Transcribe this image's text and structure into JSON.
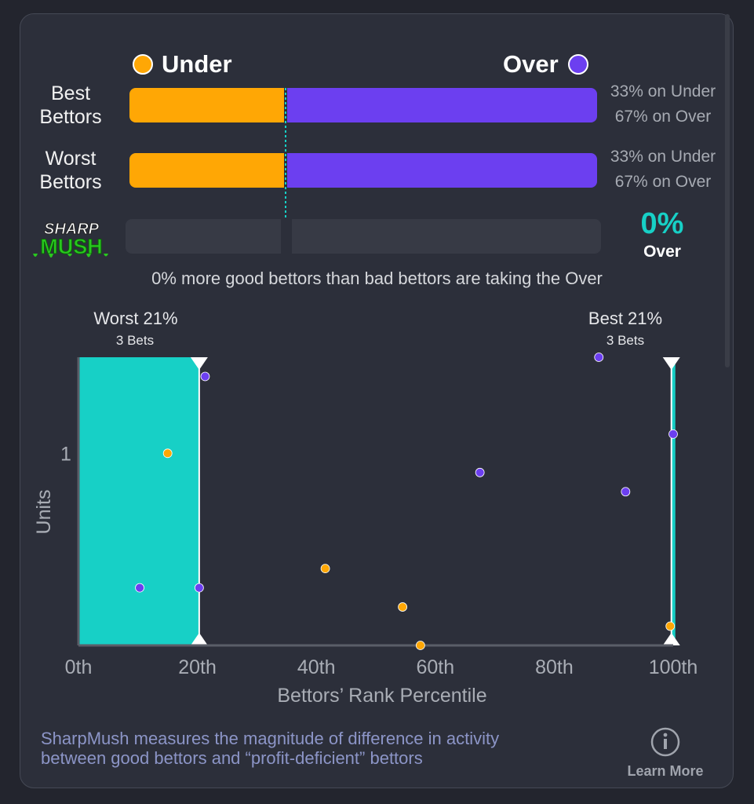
{
  "legend": {
    "under": "Under",
    "over": "Over"
  },
  "colors": {
    "under": "#ffa705",
    "over": "#6c3ff0",
    "accent": "#17d0c6"
  },
  "rows": [
    {
      "label_line1": "Best",
      "label_line2": "Bettors",
      "under_share": 0.33,
      "under_text": "33% on Under",
      "over_text": "67% on Over"
    },
    {
      "label_line1": "Worst",
      "label_line2": "Bettors",
      "under_share": 0.33,
      "under_text": "33% on Under",
      "over_text": "67% on Over"
    }
  ],
  "sharpmush": {
    "logo_line1": "SHARP",
    "logo_line2": "MUSH",
    "value": "0%",
    "direction": "Over",
    "share": 0
  },
  "summary": "0% more good bettors than bad bettors are taking the Over",
  "chart_data": {
    "type": "scatter",
    "xlabel": "Bettors’ Rank Percentile",
    "ylabel": "Units",
    "xlim": [
      0,
      100
    ],
    "ylim": [
      0,
      1.5
    ],
    "xticks": [
      "0th",
      "20th",
      "40th",
      "60th",
      "80th",
      "100th"
    ],
    "yticks": [
      "1"
    ],
    "ytick_values": [
      1
    ],
    "worst_band": {
      "label": "Worst 21%",
      "sublabel": "3 Bets",
      "from": 0,
      "to": 20.3
    },
    "best_band": {
      "label": "Best 21%",
      "sublabel": "3 Bets",
      "from": 99.7,
      "to": 100
    },
    "series": [
      {
        "name": "Under",
        "color": "#ffa705",
        "points": [
          [
            15,
            1.0
          ],
          [
            41.5,
            0.4
          ],
          [
            54.5,
            0.2
          ],
          [
            57.5,
            0.0
          ],
          [
            99.5,
            0.1
          ]
        ]
      },
      {
        "name": "Over",
        "color": "#6c3ff0",
        "points": [
          [
            10.3,
            0.3
          ],
          [
            20.3,
            0.3
          ],
          [
            21.3,
            1.4
          ],
          [
            67.5,
            0.9
          ],
          [
            87.5,
            1.5
          ],
          [
            92.0,
            0.8
          ],
          [
            100,
            1.1
          ]
        ]
      }
    ]
  },
  "footer": {
    "line1": "SharpMush measures the magnitude of difference in activity",
    "line2": "between good bettors and “profit-deficient” bettors",
    "learn_more": "Learn More"
  }
}
